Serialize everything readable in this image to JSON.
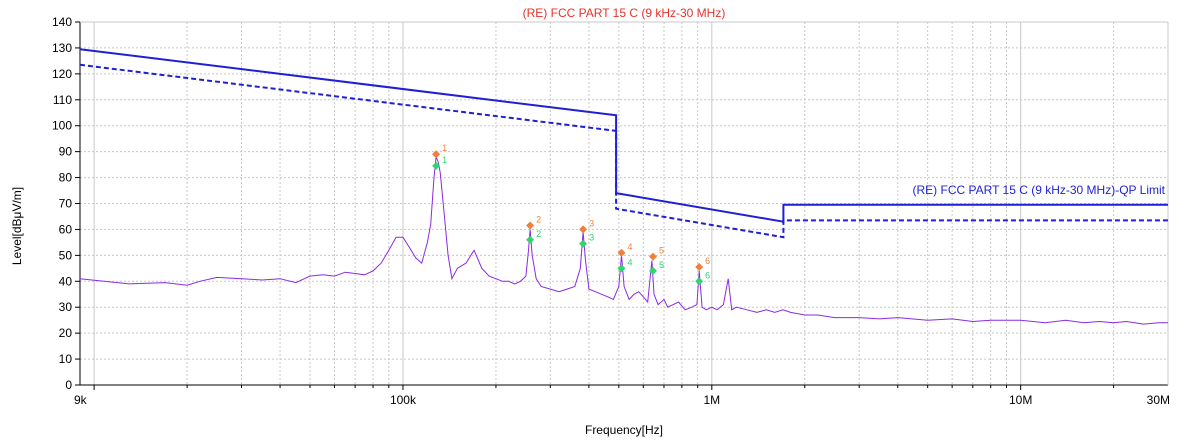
{
  "chart_data": {
    "type": "line",
    "title": "(RE) FCC PART 15 C (9 kHz-30 MHz)",
    "xlabel": "Frequency[Hz]",
    "ylabel": "Level[dBμV/m]",
    "x_scale": "log",
    "xlim": [
      9000,
      30000000
    ],
    "ylim": [
      0,
      140
    ],
    "x_ticks": [
      {
        "value": 9000,
        "label": "9k"
      },
      {
        "value": 100000,
        "label": "100k"
      },
      {
        "value": 1000000,
        "label": "1M"
      },
      {
        "value": 10000000,
        "label": "10M"
      },
      {
        "value": 30000000,
        "label": "30M"
      }
    ],
    "y_ticks": [
      0,
      10,
      20,
      30,
      40,
      50,
      60,
      70,
      80,
      90,
      100,
      110,
      120,
      130,
      140
    ],
    "grid": true,
    "limit_label": "(RE) FCC PART 15 C (9 kHz-30 MHz)-QP Limit",
    "colors": {
      "title": "#e8322b",
      "limit": "#1f1fd6",
      "trace": "#8a2be2",
      "peak_marker": "#f07f3c",
      "qp_marker": "#2ed66b",
      "grid": "#c8c8c8",
      "axis": "#000000"
    },
    "series": [
      {
        "style": "solid",
        "color": "#1f1fd6",
        "points": [
          [
            9000,
            129.5
          ],
          [
            490000,
            104
          ],
          [
            490000,
            74
          ],
          [
            1705000,
            63
          ],
          [
            1705000,
            69.5
          ],
          [
            30000000,
            69.5
          ]
        ]
      },
      {
        "style": "dashed",
        "color": "#1f1fd6",
        "points": [
          [
            9000,
            123.5
          ],
          [
            490000,
            98
          ],
          [
            490000,
            68
          ],
          [
            1705000,
            57
          ],
          [
            1705000,
            63.5
          ],
          [
            30000000,
            63.5
          ]
        ]
      },
      {
        "style": "solid",
        "color": "#8a2be2",
        "points": [
          [
            9000,
            41
          ],
          [
            13000,
            39
          ],
          [
            17000,
            39.5
          ],
          [
            20000,
            38.5
          ],
          [
            22000,
            40
          ],
          [
            25000,
            41.5
          ],
          [
            30000,
            41
          ],
          [
            35000,
            40.5
          ],
          [
            40000,
            41
          ],
          [
            45000,
            39.5
          ],
          [
            50000,
            42
          ],
          [
            55000,
            42.5
          ],
          [
            60000,
            42
          ],
          [
            65000,
            43.5
          ],
          [
            70000,
            43
          ],
          [
            75000,
            42.5
          ],
          [
            80000,
            44
          ],
          [
            85000,
            47
          ],
          [
            90000,
            52
          ],
          [
            95000,
            57
          ],
          [
            100000,
            57
          ],
          [
            105000,
            53
          ],
          [
            110000,
            49
          ],
          [
            115000,
            47
          ],
          [
            120000,
            55
          ],
          [
            123000,
            62
          ],
          [
            126000,
            80
          ],
          [
            128000,
            88
          ],
          [
            130000,
            86
          ],
          [
            132000,
            82
          ],
          [
            135000,
            70
          ],
          [
            140000,
            50
          ],
          [
            144000,
            41
          ],
          [
            150000,
            45
          ],
          [
            160000,
            47
          ],
          [
            170000,
            52
          ],
          [
            180000,
            45
          ],
          [
            190000,
            42
          ],
          [
            200000,
            41
          ],
          [
            210000,
            40
          ],
          [
            220000,
            40
          ],
          [
            230000,
            39
          ],
          [
            240000,
            40
          ],
          [
            250000,
            42
          ],
          [
            255000,
            52
          ],
          [
            258000,
            60
          ],
          [
            262000,
            50
          ],
          [
            270000,
            41
          ],
          [
            280000,
            38
          ],
          [
            300000,
            37
          ],
          [
            320000,
            36
          ],
          [
            340000,
            37
          ],
          [
            360000,
            38
          ],
          [
            375000,
            45
          ],
          [
            383000,
            59
          ],
          [
            390000,
            48
          ],
          [
            400000,
            37
          ],
          [
            420000,
            36
          ],
          [
            440000,
            35
          ],
          [
            460000,
            34
          ],
          [
            480000,
            33
          ],
          [
            500000,
            38
          ],
          [
            510000,
            50
          ],
          [
            520000,
            38
          ],
          [
            540000,
            33
          ],
          [
            560000,
            35
          ],
          [
            580000,
            36
          ],
          [
            600000,
            34
          ],
          [
            620000,
            32
          ],
          [
            640000,
            48
          ],
          [
            650000,
            35
          ],
          [
            670000,
            31
          ],
          [
            700000,
            33
          ],
          [
            720000,
            30
          ],
          [
            750000,
            31
          ],
          [
            780000,
            32
          ],
          [
            820000,
            29
          ],
          [
            860000,
            30
          ],
          [
            895000,
            31
          ],
          [
            910000,
            44
          ],
          [
            930000,
            30
          ],
          [
            960000,
            29
          ],
          [
            1000000,
            30
          ],
          [
            1040000,
            29
          ],
          [
            1090000,
            31
          ],
          [
            1130000,
            41
          ],
          [
            1160000,
            29
          ],
          [
            1200000,
            30
          ],
          [
            1300000,
            29
          ],
          [
            1400000,
            28
          ],
          [
            1500000,
            29
          ],
          [
            1600000,
            28
          ],
          [
            1700000,
            29
          ],
          [
            1800000,
            28
          ],
          [
            2000000,
            27
          ],
          [
            2200000,
            27
          ],
          [
            2500000,
            26
          ],
          [
            3000000,
            26
          ],
          [
            3500000,
            25.5
          ],
          [
            4000000,
            26
          ],
          [
            5000000,
            25
          ],
          [
            6000000,
            25.5
          ],
          [
            7000000,
            24.5
          ],
          [
            8000000,
            25
          ],
          [
            10000000,
            25
          ],
          [
            12000000,
            24
          ],
          [
            14000000,
            25
          ],
          [
            16000000,
            24
          ],
          [
            18000000,
            24.5
          ],
          [
            20000000,
            24
          ],
          [
            22000000,
            24.5
          ],
          [
            25000000,
            23.5
          ],
          [
            28000000,
            24
          ],
          [
            30000000,
            24
          ]
        ]
      }
    ],
    "markers": [
      {
        "id": "1",
        "freq": 128000,
        "peak": 89,
        "qp": 84.5
      },
      {
        "id": "2",
        "freq": 258000,
        "peak": 61.5,
        "qp": 56
      },
      {
        "id": "3",
        "freq": 383000,
        "peak": 60,
        "qp": 54.5
      },
      {
        "id": "4",
        "freq": 510000,
        "peak": 51,
        "qp": 45
      },
      {
        "id": "5",
        "freq": 645000,
        "peak": 49.5,
        "qp": 44
      },
      {
        "id": "6",
        "freq": 910000,
        "peak": 45.5,
        "qp": 40
      }
    ]
  }
}
